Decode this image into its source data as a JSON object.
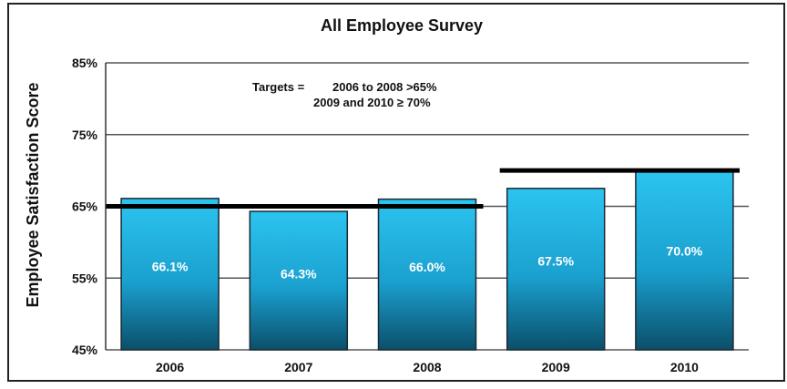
{
  "chart_data": {
    "type": "bar",
    "title": "All Employee Survey",
    "xlabel": "",
    "ylabel": "Employee Satisfaction Score",
    "categories": [
      "2006",
      "2007",
      "2008",
      "2009",
      "2010"
    ],
    "values": [
      66.1,
      64.3,
      66.0,
      67.5,
      70.0
    ],
    "value_labels": [
      "66.1%",
      "64.3%",
      "66.0%",
      "67.5%",
      "70.0%"
    ],
    "ylim": [
      45,
      85
    ],
    "yticks": [
      45,
      55,
      65,
      75,
      85
    ],
    "ytick_labels": [
      "45%",
      "55%",
      "65%",
      "75%",
      "85%"
    ],
    "grid": true,
    "targets": [
      {
        "from": "2006",
        "to": "2008",
        "value": 65
      },
      {
        "from": "2009",
        "to": "2010",
        "value": 70
      }
    ],
    "annotation": {
      "prefix": "Targets =",
      "line1": "2006 to 2008 >65%",
      "line2": "2009 and 2010 ≥ 70%"
    },
    "colors": {
      "bar_top": "#2cc4ef",
      "bar_bottom": "#0b4f6a",
      "bar_outline": "#1a2a33",
      "target_line": "#000000",
      "gridline": "#555555",
      "value_label": "#ffffff"
    }
  }
}
